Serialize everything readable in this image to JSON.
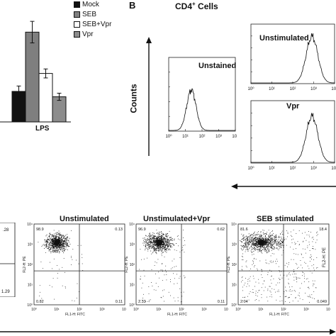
{
  "panel_b_label": "B",
  "panel_b_title": "CD4",
  "panel_b_title_sup": "+",
  "panel_b_title_rest": " Cells",
  "counts_label": "Counts",
  "legend": [
    {
      "label": "Mock",
      "color": "#111111"
    },
    {
      "label": "SEB",
      "color": "#7f7f7f"
    },
    {
      "label": "SEB+Vpr",
      "color": "#ffffff"
    },
    {
      "label": "Vpr",
      "color": "#8c8c8c"
    }
  ],
  "bar_xlabel": "LPS",
  "histograms": [
    {
      "title": "Unstained",
      "ticks": [
        "10⁰",
        "10¹",
        "10²",
        "10³",
        "10⁴"
      ]
    },
    {
      "title": "Unstimulated",
      "ticks": [
        "10⁰",
        "10¹",
        "10²",
        "10³",
        "10⁴"
      ]
    },
    {
      "title": "Vpr",
      "ticks": [
        "10⁰",
        "10¹",
        "10²",
        "10³",
        "10⁴"
      ]
    }
  ],
  "scatter_panels": [
    {
      "title": "Unstimulated",
      "q_ul": "98.9",
      "q_ur": "0.13",
      "q_ll": "0.82",
      "q_lr": "0.11",
      "ylabel": "FL2-H: PE",
      "xlabel": "FL1-H: FITC"
    },
    {
      "title": "Unstimulated+Vpr",
      "q_ul": "96.9",
      "q_ur": "0.62",
      "q_ll": "2.33",
      "q_lr": "0.11",
      "ylabel": "FL2-H: PE",
      "xlabel": "FL1-H: FITC"
    },
    {
      "title": "SEB stimulated",
      "q_ul": "81.6",
      "q_ur": "18.4",
      "q_ll": "2.04",
      "q_lr": "0.049",
      "ylabel": "FL2-H: PE",
      "xlabel": "FL1-H: FITC"
    }
  ],
  "partial_left_values": {
    "top": ".28",
    "bottom": "1.29"
  },
  "partial_right_ylabel": "FL2-H: PE",
  "scatter_axis_ticks": [
    "10⁰",
    "10¹",
    "10²",
    "10³",
    "10⁴"
  ],
  "chart_data": {
    "type": "bar",
    "categories": [
      "LPS"
    ],
    "series": [
      {
        "name": "Mock",
        "values": [
          0.17
        ]
      },
      {
        "name": "SEB",
        "values": [
          0.5
        ]
      },
      {
        "name": "SEB+Vpr",
        "values": [
          0.27
        ]
      },
      {
        "name": "Vpr",
        "values": [
          0.14
        ]
      }
    ],
    "errors": [
      0.03,
      0.06,
      0.025,
      0.02
    ],
    "ylim": [
      0,
      0.6
    ],
    "xlabel": "LPS",
    "ylabel": ""
  }
}
